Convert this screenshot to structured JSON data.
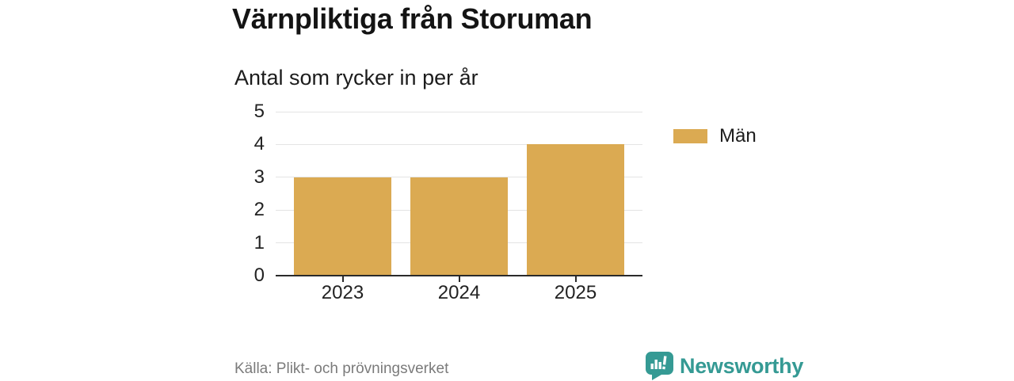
{
  "title": "Värnpliktiga från Storuman",
  "subtitle": "Antal som rycker in per år",
  "source": "Källa: Plikt- och prövningsverket",
  "brand": {
    "name": "Newsworthy",
    "color": "#359a94"
  },
  "legend": [
    {
      "label": "Män",
      "color": "#dbaa52"
    }
  ],
  "colors": {
    "bar": "#dbaa52",
    "axis": "#2a2a2a",
    "gridline": "#e4e4e4",
    "text": "#1a1a1a",
    "muted_text": "#7b7b7b",
    "brand_teal": "#359a94"
  },
  "chart_data": {
    "type": "bar",
    "categories": [
      "2023",
      "2024",
      "2025"
    ],
    "series": [
      {
        "name": "Män",
        "values": [
          3,
          3,
          4
        ]
      }
    ],
    "title": "Värnpliktiga från Storuman",
    "subtitle": "Antal som rycker in per år",
    "xlabel": "",
    "ylabel": "",
    "ylim": [
      0,
      5
    ],
    "yticks": [
      0,
      1,
      2,
      3,
      4,
      5
    ],
    "grid": true,
    "legend_position": "right",
    "bar_color": "#dbaa52",
    "source": "Källa: Plikt- och prövningsverket"
  }
}
